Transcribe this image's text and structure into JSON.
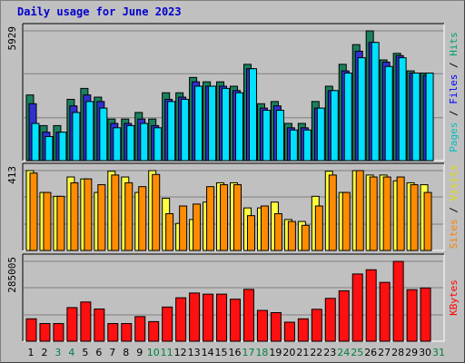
{
  "title": "Daily usage for June 2023",
  "chart_data": [
    {
      "type": "bar",
      "panel": "hits-files-pages",
      "ymax_label": "5929",
      "right_label": [
        {
          "text": "Pages",
          "color": "#00c0c0"
        },
        {
          "text": " / ",
          "color": "#000000"
        },
        {
          "text": "Files",
          "color": "#0000ff"
        },
        {
          "text": " / ",
          "color": "#000000"
        },
        {
          "text": "Hits",
          "color": "#00a070"
        }
      ],
      "series": [
        {
          "name": "Hits",
          "color": "#1a8060",
          "values": [
            3000,
            1600,
            1600,
            2800,
            3300,
            2900,
            1900,
            1900,
            2200,
            1900,
            3100,
            3100,
            3800,
            3600,
            3600,
            3400,
            4400,
            2600,
            2700,
            1700,
            1700,
            2700,
            3400,
            4400,
            5300,
            5929,
            4600,
            4900,
            4100,
            4000
          ]
        },
        {
          "name": "Files",
          "color": "#3030d0",
          "values": [
            2600,
            1300,
            1300,
            2500,
            3000,
            2700,
            1700,
            1700,
            1900,
            1600,
            2800,
            2900,
            3600,
            3400,
            3400,
            3200,
            4200,
            2400,
            2500,
            1500,
            1500,
            2400,
            3200,
            4100,
            5000,
            5400,
            4500,
            4800,
            4000,
            3900
          ]
        },
        {
          "name": "Pages",
          "color": "#00e0ff",
          "values": [
            1700,
            1100,
            1300,
            2200,
            2700,
            2400,
            1500,
            1600,
            1700,
            1500,
            2700,
            2800,
            3400,
            3400,
            3300,
            3100,
            4200,
            2300,
            2300,
            1400,
            1400,
            2400,
            3200,
            4000,
            4700,
            5400,
            4300,
            4700,
            4000,
            4000
          ]
        }
      ]
    },
    {
      "type": "bar",
      "panel": "visits-sites",
      "ymax_label": "413",
      "right_label": [
        {
          "text": "Sites",
          "color": "#ff8000"
        },
        {
          "text": " / ",
          "color": "#000000"
        },
        {
          "text": "Visits",
          "color": "#e0e000"
        }
      ],
      "series": [
        {
          "name": "Visits",
          "color": "#ffff40",
          "values": [
            413,
            300,
            280,
            380,
            370,
            300,
            410,
            380,
            300,
            413,
            270,
            140,
            160,
            250,
            350,
            350,
            220,
            220,
            250,
            160,
            150,
            280,
            410,
            300,
            413,
            390,
            390,
            360,
            350,
            340
          ]
        },
        {
          "name": "Sites",
          "color": "#ff8c00",
          "values": [
            400,
            300,
            280,
            350,
            370,
            340,
            390,
            350,
            330,
            393,
            190,
            230,
            240,
            330,
            340,
            340,
            180,
            230,
            190,
            150,
            130,
            230,
            390,
            300,
            413,
            380,
            380,
            380,
            340,
            300
          ]
        }
      ]
    },
    {
      "type": "bar",
      "panel": "kbytes",
      "ymax_label": "285005",
      "right_label": [
        {
          "text": "KBytes",
          "color": "#ff0000"
        }
      ],
      "series": [
        {
          "name": "KBytes",
          "color": "#ff1010",
          "values": [
            80000,
            63000,
            63000,
            120000,
            140000,
            115000,
            63000,
            63000,
            88000,
            70000,
            122000,
            155000,
            172000,
            168000,
            168000,
            150000,
            185000,
            110000,
            102000,
            68000,
            80000,
            114000,
            153000,
            180000,
            240000,
            255000,
            210000,
            285005,
            184000,
            190000
          ]
        }
      ]
    }
  ],
  "x_labels": [
    {
      "day": "1",
      "weekend": false
    },
    {
      "day": "2",
      "weekend": false
    },
    {
      "day": "3",
      "weekend": true
    },
    {
      "day": "4",
      "weekend": true
    },
    {
      "day": "5",
      "weekend": false
    },
    {
      "day": "6",
      "weekend": false
    },
    {
      "day": "7",
      "weekend": false
    },
    {
      "day": "8",
      "weekend": false
    },
    {
      "day": "9",
      "weekend": false
    },
    {
      "day": "10",
      "weekend": true
    },
    {
      "day": "11",
      "weekend": true
    },
    {
      "day": "12",
      "weekend": false
    },
    {
      "day": "13",
      "weekend": false
    },
    {
      "day": "14",
      "weekend": false
    },
    {
      "day": "15",
      "weekend": false
    },
    {
      "day": "16",
      "weekend": false
    },
    {
      "day": "17",
      "weekend": true
    },
    {
      "day": "18",
      "weekend": true
    },
    {
      "day": "19",
      "weekend": false
    },
    {
      "day": "20",
      "weekend": false
    },
    {
      "day": "21",
      "weekend": false
    },
    {
      "day": "22",
      "weekend": false
    },
    {
      "day": "23",
      "weekend": false
    },
    {
      "day": "24",
      "weekend": true
    },
    {
      "day": "25",
      "weekend": true
    },
    {
      "day": "26",
      "weekend": false
    },
    {
      "day": "27",
      "weekend": false
    },
    {
      "day": "28",
      "weekend": false
    },
    {
      "day": "29",
      "weekend": false
    },
    {
      "day": "30",
      "weekend": false
    },
    {
      "day": "31",
      "weekend": true
    }
  ],
  "colors": {
    "weekday_label": "#000000",
    "weekend_label": "#008040",
    "panel_bg": "#c0c0c0",
    "gridline": "#808080"
  }
}
